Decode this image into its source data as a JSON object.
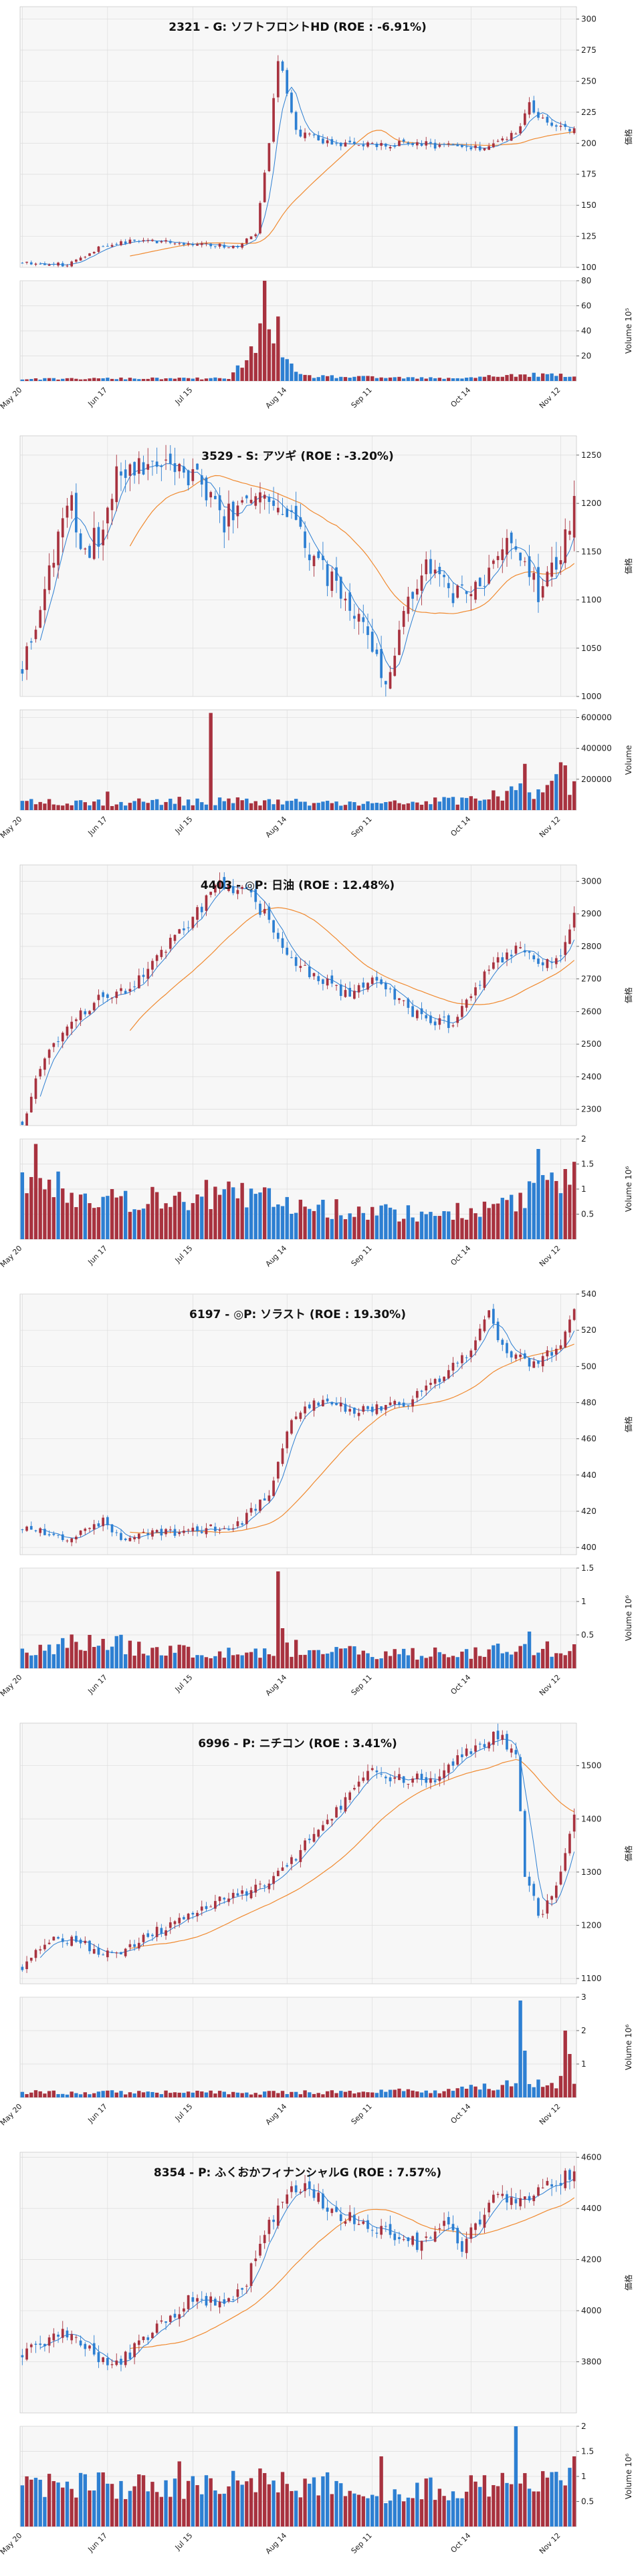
{
  "page": {
    "background": "#ffffff"
  },
  "style": {
    "up_color": "#a8323f",
    "down_color": "#2d7fd2",
    "short_ma_color": "#2d7fd2",
    "long_ma_color": "#f08a30",
    "plot_bg": "#f7f7f7",
    "grid_color": "#dcdcdc"
  },
  "x_axis": {
    "tick_labels": [
      "May 20",
      "Jun 17",
      "Jul 15",
      "Aug 14",
      "Sep 11",
      "Oct 14",
      "Nov 12"
    ],
    "tick_index": [
      0,
      19,
      38,
      59,
      78,
      100,
      120
    ],
    "n_days": 124
  },
  "chart_data": [
    {
      "type": "candlestick",
      "title": "2321 - G: ソフトフロントHD (ROE : -6.91%)",
      "ylabel": "価格",
      "volume_label": "Volume",
      "volume_exponent": "10⁵",
      "ylim": [
        100,
        310
      ],
      "yticks": [
        100,
        125,
        150,
        175,
        200,
        225,
        250,
        275,
        300
      ],
      "vol_ylim": [
        0,
        80
      ],
      "vol_ticks": [
        20,
        40,
        60,
        80
      ],
      "close_path": [
        [
          0,
          104
        ],
        [
          10,
          102
        ],
        [
          18,
          118
        ],
        [
          27,
          122
        ],
        [
          36,
          119
        ],
        [
          48,
          117
        ],
        [
          52,
          126
        ],
        [
          55,
          200
        ],
        [
          57,
          270
        ],
        [
          61,
          210
        ],
        [
          67,
          200
        ],
        [
          75,
          198
        ],
        [
          85,
          200
        ],
        [
          95,
          198
        ],
        [
          102,
          195
        ],
        [
          110,
          210
        ],
        [
          113,
          230
        ],
        [
          117,
          215
        ],
        [
          123,
          212
        ]
      ],
      "volume_path": [
        [
          0,
          1.5
        ],
        [
          20,
          2
        ],
        [
          46,
          2
        ],
        [
          52,
          25
        ],
        [
          53,
          70
        ],
        [
          54,
          76
        ],
        [
          55,
          60
        ],
        [
          56,
          45
        ],
        [
          57,
          38
        ],
        [
          58,
          18
        ],
        [
          60,
          10
        ],
        [
          62,
          4
        ],
        [
          75,
          3
        ],
        [
          95,
          2
        ],
        [
          105,
          4
        ],
        [
          118,
          5
        ],
        [
          123,
          3
        ]
      ],
      "seed": 11,
      "noise": 0.015,
      "vol_noise": 0.4
    },
    {
      "type": "candlestick",
      "title": "3529 - S: アツギ (ROE : -3.20%)",
      "ylabel": "価格",
      "volume_label": "Volume",
      "volume_exponent": "",
      "ylim": [
        1000,
        1270
      ],
      "yticks": [
        1000,
        1050,
        1100,
        1150,
        1200,
        1250
      ],
      "vol_ylim": [
        0,
        650000
      ],
      "vol_ticks": [
        200000,
        400000,
        600000
      ],
      "close_path": [
        [
          0,
          1030
        ],
        [
          6,
          1130
        ],
        [
          10,
          1210
        ],
        [
          14,
          1150
        ],
        [
          18,
          1175
        ],
        [
          22,
          1240
        ],
        [
          30,
          1240
        ],
        [
          38,
          1230
        ],
        [
          45,
          1180
        ],
        [
          52,
          1220
        ],
        [
          58,
          1195
        ],
        [
          65,
          1140
        ],
        [
          72,
          1110
        ],
        [
          78,
          1055
        ],
        [
          81,
          1010
        ],
        [
          85,
          1090
        ],
        [
          90,
          1140
        ],
        [
          95,
          1110
        ],
        [
          100,
          1100
        ],
        [
          106,
          1150
        ],
        [
          110,
          1160
        ],
        [
          115,
          1110
        ],
        [
          120,
          1140
        ],
        [
          123,
          1200
        ]
      ],
      "volume_path": [
        [
          0,
          60000
        ],
        [
          20,
          50000
        ],
        [
          40,
          60000
        ],
        [
          60,
          50000
        ],
        [
          80,
          40000
        ],
        [
          100,
          70000
        ],
        [
          110,
          110000
        ],
        [
          118,
          160000
        ],
        [
          123,
          200000
        ]
      ],
      "spikes": [
        [
          42,
          630000
        ],
        [
          112,
          300000
        ],
        [
          120,
          310000
        ],
        [
          121,
          290000
        ],
        [
          19,
          120000
        ]
      ],
      "seed": 23,
      "noise": 0.012,
      "vol_noise": 0.5
    },
    {
      "type": "candlestick",
      "title": "4403 - ◎P: 日油 (ROE : 12.48%)",
      "ylabel": "価格",
      "volume_label": "Volume",
      "volume_exponent": "10⁶",
      "ylim": [
        2250,
        3050
      ],
      "yticks": [
        2300,
        2400,
        2500,
        2600,
        2700,
        2800,
        2900,
        3000
      ],
      "vol_ylim": [
        0,
        2.0
      ],
      "vol_ticks": [
        0.5,
        1.0,
        1.5,
        2.0
      ],
      "close_path": [
        [
          0,
          2260
        ],
        [
          5,
          2470
        ],
        [
          10,
          2560
        ],
        [
          18,
          2650
        ],
        [
          25,
          2680
        ],
        [
          32,
          2800
        ],
        [
          38,
          2890
        ],
        [
          44,
          2990
        ],
        [
          50,
          2970
        ],
        [
          55,
          2880
        ],
        [
          60,
          2760
        ],
        [
          66,
          2700
        ],
        [
          72,
          2650
        ],
        [
          80,
          2700
        ],
        [
          86,
          2600
        ],
        [
          92,
          2570
        ],
        [
          96,
          2560
        ],
        [
          100,
          2660
        ],
        [
          106,
          2750
        ],
        [
          110,
          2790
        ],
        [
          116,
          2760
        ],
        [
          120,
          2770
        ],
        [
          123,
          2920
        ]
      ],
      "volume_path": [
        [
          0,
          1.2
        ],
        [
          10,
          1.0
        ],
        [
          25,
          0.8
        ],
        [
          40,
          0.9
        ],
        [
          55,
          0.8
        ],
        [
          70,
          0.6
        ],
        [
          90,
          0.5
        ],
        [
          105,
          0.6
        ],
        [
          115,
          1.0
        ],
        [
          123,
          1.3
        ]
      ],
      "spikes": [
        [
          3,
          1.9
        ],
        [
          115,
          1.8
        ],
        [
          121,
          1.4
        ]
      ],
      "seed": 37,
      "noise": 0.007,
      "vol_noise": 0.35
    },
    {
      "type": "candlestick",
      "title": "6197 - ◎P: ソラスト (ROE : 19.30%)",
      "ylabel": "価格",
      "volume_label": "Volume",
      "volume_exponent": "10⁶",
      "ylim": [
        396,
        540
      ],
      "yticks": [
        400,
        420,
        440,
        460,
        480,
        500,
        520,
        540
      ],
      "close_path": [
        [
          0,
          411
        ],
        [
          10,
          406
        ],
        [
          18,
          414
        ],
        [
          22,
          405
        ],
        [
          30,
          408
        ],
        [
          40,
          410
        ],
        [
          48,
          412
        ],
        [
          55,
          430
        ],
        [
          60,
          470
        ],
        [
          66,
          480
        ],
        [
          75,
          476
        ],
        [
          85,
          479
        ],
        [
          95,
          498
        ],
        [
          100,
          508
        ],
        [
          104,
          528
        ],
        [
          108,
          505
        ],
        [
          114,
          502
        ],
        [
          120,
          512
        ],
        [
          123,
          532
        ]
      ],
      "vol_ylim": [
        0,
        1.5
      ],
      "vol_ticks": [
        0.5,
        1.0,
        1.5
      ],
      "volume_path": [
        [
          0,
          0.25
        ],
        [
          15,
          0.4
        ],
        [
          30,
          0.3
        ],
        [
          45,
          0.25
        ],
        [
          60,
          0.3
        ],
        [
          80,
          0.2
        ],
        [
          100,
          0.25
        ],
        [
          115,
          0.3
        ],
        [
          123,
          0.3
        ]
      ],
      "spikes": [
        [
          57,
          1.45
        ],
        [
          58,
          0.6
        ],
        [
          15,
          0.5
        ],
        [
          113,
          0.55
        ]
      ],
      "seed": 53,
      "noise": 0.006,
      "vol_noise": 0.45
    },
    {
      "type": "candlestick",
      "title": "6996 - P: ニチコン (ROE : 3.41%)",
      "ylabel": "価格",
      "volume_label": "Volume",
      "volume_exponent": "10⁶",
      "ylim": [
        1090,
        1580
      ],
      "yticks": [
        1100,
        1200,
        1300,
        1400,
        1500
      ],
      "vol_ylim": [
        0,
        3
      ],
      "vol_ticks": [
        1,
        2,
        3
      ],
      "close_path": [
        [
          0,
          1120
        ],
        [
          6,
          1170
        ],
        [
          12,
          1170
        ],
        [
          20,
          1140
        ],
        [
          30,
          1190
        ],
        [
          40,
          1230
        ],
        [
          48,
          1260
        ],
        [
          55,
          1280
        ],
        [
          62,
          1340
        ],
        [
          70,
          1420
        ],
        [
          78,
          1490
        ],
        [
          85,
          1470
        ],
        [
          92,
          1480
        ],
        [
          100,
          1530
        ],
        [
          106,
          1560
        ],
        [
          110,
          1520
        ],
        [
          112,
          1300
        ],
        [
          115,
          1220
        ],
        [
          118,
          1250
        ],
        [
          121,
          1330
        ],
        [
          123,
          1400
        ]
      ],
      "volume_path": [
        [
          0,
          0.15
        ],
        [
          30,
          0.15
        ],
        [
          60,
          0.15
        ],
        [
          90,
          0.2
        ],
        [
          105,
          0.3
        ],
        [
          110,
          0.4
        ],
        [
          123,
          0.5
        ]
      ],
      "spikes": [
        [
          111,
          2.9
        ],
        [
          112,
          1.4
        ],
        [
          121,
          2.0
        ],
        [
          122,
          1.3
        ]
      ],
      "seed": 71,
      "noise": 0.008,
      "vol_noise": 0.45
    },
    {
      "type": "candlestick",
      "title": "8354 - P: ふくおかフィナンシャルG (ROE : 7.57%)",
      "ylabel": "価格",
      "volume_label": "Volume",
      "volume_exponent": "10⁶",
      "ylim": [
        3600,
        4620
      ],
      "yticks": [
        3800,
        4000,
        4200,
        4400,
        4600
      ],
      "vol_ylim": [
        0,
        2.0
      ],
      "vol_ticks": [
        0.5,
        1.0,
        1.5,
        2.0
      ],
      "close_path": [
        [
          0,
          3830
        ],
        [
          8,
          3920
        ],
        [
          15,
          3850
        ],
        [
          20,
          3780
        ],
        [
          26,
          3860
        ],
        [
          32,
          3960
        ],
        [
          38,
          4060
        ],
        [
          45,
          4020
        ],
        [
          50,
          4120
        ],
        [
          55,
          4350
        ],
        [
          60,
          4460
        ],
        [
          64,
          4480
        ],
        [
          70,
          4380
        ],
        [
          75,
          4350
        ],
        [
          80,
          4310
        ],
        [
          88,
          4260
        ],
        [
          94,
          4340
        ],
        [
          98,
          4260
        ],
        [
          104,
          4420
        ],
        [
          110,
          4440
        ],
        [
          116,
          4480
        ],
        [
          120,
          4500
        ],
        [
          123,
          4560
        ]
      ],
      "volume_path": [
        [
          0,
          0.8
        ],
        [
          20,
          0.8
        ],
        [
          40,
          0.8
        ],
        [
          60,
          0.9
        ],
        [
          80,
          0.7
        ],
        [
          100,
          0.8
        ],
        [
          123,
          0.9
        ]
      ],
      "spikes": [
        [
          110,
          2.0
        ],
        [
          80,
          1.4
        ],
        [
          123,
          1.4
        ],
        [
          35,
          1.3
        ]
      ],
      "seed": 89,
      "noise": 0.007,
      "vol_noise": 0.35
    }
  ]
}
